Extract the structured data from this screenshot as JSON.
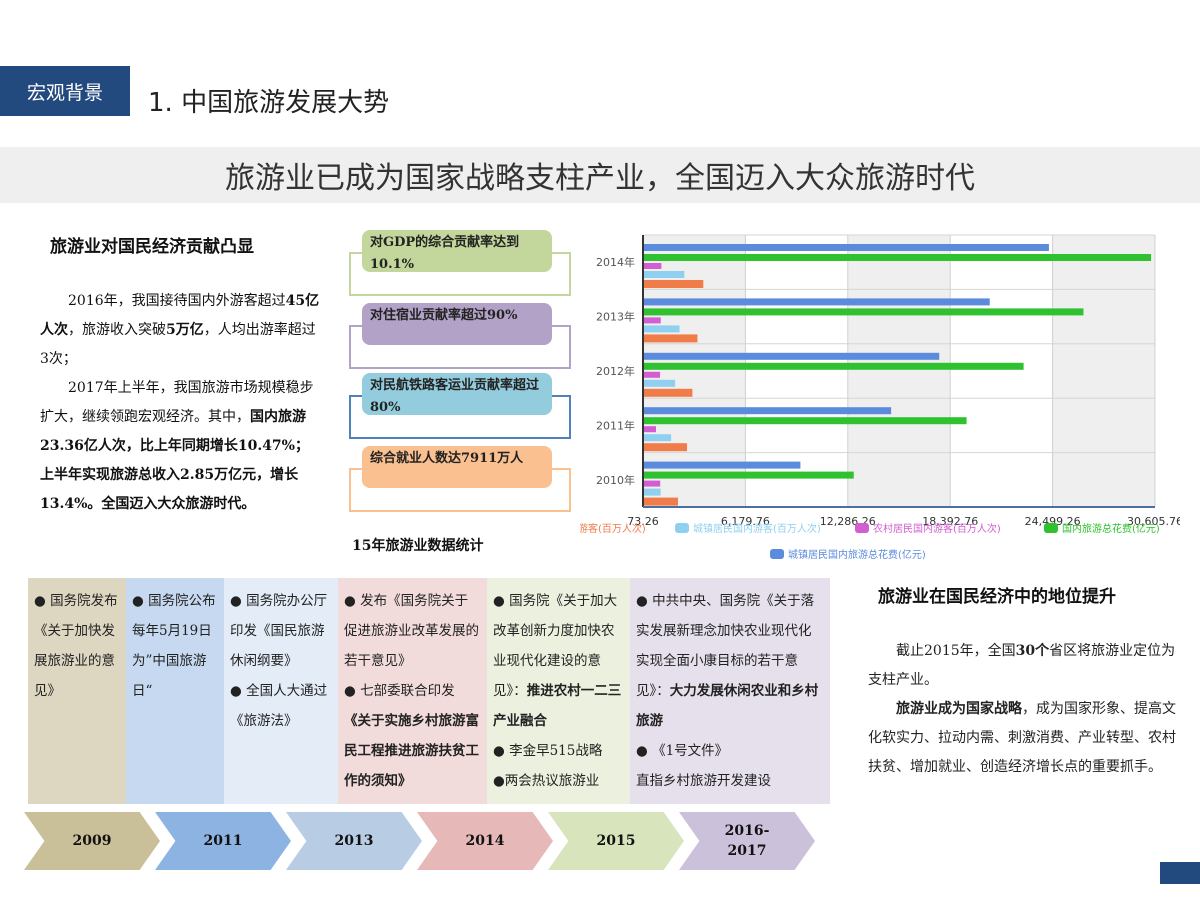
{
  "header": {
    "section_tag": "宏观背景",
    "page_title": "1. 中国旅游发展大势",
    "banner": "旅游业已成为国家战略支柱产业，全国迈入大众旅游时代"
  },
  "left": {
    "heading": "旅游业对国民经济贡献凸显",
    "p1": {
      "a": "2016年，我国接待国内外游客超过",
      "b": "45亿人次",
      "c": "，旅游收入突破",
      "d": "5万亿",
      "e": "，人均出游率超过3次；"
    },
    "p2": {
      "a": "2017年上半年，我国旅游市场规模稳步扩大，继续领跑宏观经济。其中，",
      "b": "国内旅游23.36亿人次，比上年同期增长10.47%；上半年实现旅游总收入2.85万亿元，增长13.4%。全国迈入大众旅游时代。"
    }
  },
  "callouts": [
    {
      "text": "对GDP的综合贡献率达到10.1%",
      "bg": "#c3d69b",
      "border": "#c3d69b"
    },
    {
      "text": "对住宿业贡献率超过90%",
      "bg": "#b3a2c7",
      "border": "#b3a2c7"
    },
    {
      "text": "对民航铁路客运业贡献率超过80%",
      "bg": "#93cddd",
      "border": "#4f81bd"
    },
    {
      "text": "综合就业人数达7911万人",
      "bg": "#fac090",
      "border": "#fac090"
    }
  ],
  "chart_caption": "15年旅游业数据统计",
  "chart_data": {
    "type": "bar",
    "orientation": "horizontal",
    "title": "15年旅游业数据统计",
    "categories": [
      "2010年",
      "2011年",
      "2012年",
      "2013年",
      "2014年"
    ],
    "x_ticks": [
      "73.26",
      "6,179.76",
      "12,286.26",
      "18,392.76",
      "24,499.26",
      "30,605.76"
    ],
    "xlim": [
      73.26,
      30605.76
    ],
    "grid": true,
    "legend_position": "bottom",
    "series": [
      {
        "name": "国内游客(百万人次)",
        "color": "#f07c4a",
        "values": [
          2100,
          2640,
          2960,
          3260,
          3610
        ]
      },
      {
        "name": "城镇居民国内游客(百万人次)",
        "color": "#8fd0f0",
        "values": [
          1065,
          1690,
          1930,
          2190,
          2480
        ]
      },
      {
        "name": "农村居民国内游客(百万人次)",
        "color": "#d25ed2",
        "values": [
          1040,
          790,
          1030,
          1070,
          1110
        ]
      },
      {
        "name": "国内旅游总花费(亿元)",
        "color": "#2fc12f",
        "values": [
          12580,
          19310,
          22710,
          26280,
          30310
        ]
      },
      {
        "name": "城镇居民国内旅游总花费(亿元)",
        "color": "#5b8bdc",
        "values": [
          9400,
          14810,
          17680,
          20690,
          24220
        ]
      }
    ]
  },
  "timeline": {
    "panels": [
      {
        "color": "#ddd6c1",
        "lines": [
          {
            "t": "● 国务院发布《关于加快发展旅游业的意见》"
          }
        ]
      },
      {
        "color": "#c6d9f0",
        "lines": [
          {
            "t": "● 国务院公布每年5月19日为”中国旅游日“"
          }
        ]
      },
      {
        "color": "#e3ecf7",
        "lines": [
          {
            "t": "● 国务院办公厅印发《国民旅游休闲纲要》"
          },
          {
            "t": "● 全国人大通过《旅游法》"
          }
        ]
      },
      {
        "color": "#f2dcdb",
        "lines": [
          {
            "t": "● 发布《国务院关于促进旅游业改革发展的若干意见》"
          },
          {
            "t": "● 七部委联合印发"
          },
          {
            "t": "《关于实施乡村旅游富民工程推进旅游扶贫工作的须知》",
            "bold": true
          }
        ]
      },
      {
        "color": "#ebf1de",
        "lines": [
          {
            "t": "● 国务院《关于加大改革创新力度加快农业现代化建设的意见》："
          },
          {
            "t": "推进农村一二三产业融合",
            "bold": true
          },
          {
            "t": "● 李金早515战略"
          },
          {
            "t": "●两会热议旅游业"
          }
        ]
      },
      {
        "color": "#e5e0ec",
        "lines": [
          {
            "t": "● 中共中央、国务院《关于落实发展新理念加快农业现代化实现全面小康目标的若干意见》："
          },
          {
            "t": "大力发展休闲农业和乡村旅游",
            "bold": true
          },
          {
            "t": "● 《1号文件》"
          },
          {
            "t": "直指乡村旅游开发建设"
          }
        ]
      }
    ],
    "years": [
      {
        "label": "2009",
        "color": "#c9c09a"
      },
      {
        "label": "2011",
        "color": "#8db3e2"
      },
      {
        "label": "2013",
        "color": "#b8cce4"
      },
      {
        "label": "2014",
        "color": "#e6b9b8"
      },
      {
        "label": "2015",
        "color": "#d7e4bc"
      },
      {
        "label": "2016-2017",
        "color": "#ccc1da"
      }
    ]
  },
  "right": {
    "heading": "旅游业在国民经济中的地位提升",
    "p1": {
      "a": "截止2015年，全国",
      "b": "30个",
      "c": "省区将旅游业定位为支柱产业。"
    },
    "p2": {
      "a": "旅游业成为国家战略",
      "b": "，成为国家形象、提高文化软实力、拉动内需、刺激消费、产业转型、农村扶贫、增加就业、创造经济增长点的重要抓手。"
    }
  }
}
